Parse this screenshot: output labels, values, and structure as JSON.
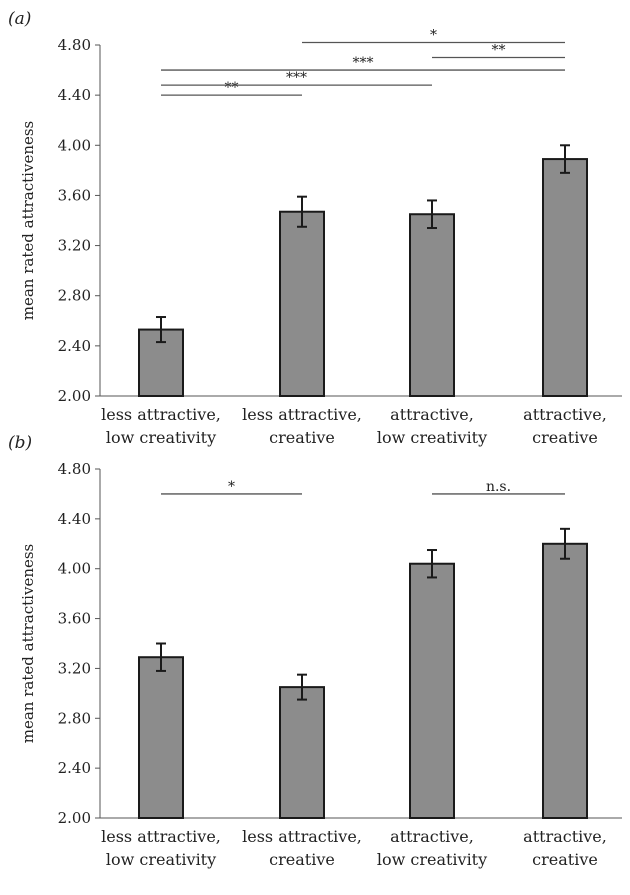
{
  "chart_data": [
    {
      "panel_label": "(a)",
      "type": "bar",
      "ylabel": "mean rated attractiveness",
      "ylim": [
        2.0,
        4.8
      ],
      "yticks": [
        "2.00",
        "2.40",
        "2.80",
        "3.20",
        "3.60",
        "4.00",
        "4.40",
        "4.80"
      ],
      "categories": [
        [
          "less attractive,",
          "low creativity"
        ],
        [
          "less attractive,",
          "creative"
        ],
        [
          "attractive,",
          "low creativity"
        ],
        [
          "attractive,",
          "creative"
        ]
      ],
      "values": [
        2.53,
        3.47,
        3.45,
        3.89
      ],
      "error": [
        0.1,
        0.12,
        0.11,
        0.11
      ],
      "bar_color": "#8c8c8c",
      "comparisons": [
        {
          "from": 0,
          "to": 1,
          "level": 4.4,
          "label": "**"
        },
        {
          "from": 0,
          "to": 2,
          "level": 4.48,
          "label": "***"
        },
        {
          "from": 0,
          "to": 3,
          "level": 4.6,
          "label": "***"
        },
        {
          "from": 2,
          "to": 3,
          "level": 4.7,
          "label": "**"
        },
        {
          "from": 1,
          "to": 3,
          "level": 4.82,
          "label": "*"
        }
      ]
    },
    {
      "panel_label": "(b)",
      "type": "bar",
      "ylabel": "mean rated attractiveness",
      "ylim": [
        2.0,
        4.8
      ],
      "yticks": [
        "2.00",
        "2.40",
        "2.80",
        "3.20",
        "3.60",
        "4.00",
        "4.40",
        "4.80"
      ],
      "categories": [
        [
          "less attractive,",
          "low creativity"
        ],
        [
          "less attractive,",
          "creative"
        ],
        [
          "attractive,",
          "low creativity"
        ],
        [
          "attractive,",
          "creative"
        ]
      ],
      "values": [
        3.29,
        3.05,
        4.04,
        4.2
      ],
      "error": [
        0.11,
        0.1,
        0.11,
        0.12
      ],
      "bar_color": "#8c8c8c",
      "comparisons": [
        {
          "from": 0,
          "to": 1,
          "level": 4.6,
          "label": "*"
        },
        {
          "from": 2,
          "to": 3,
          "level": 4.6,
          "label": "n.s."
        }
      ]
    }
  ]
}
